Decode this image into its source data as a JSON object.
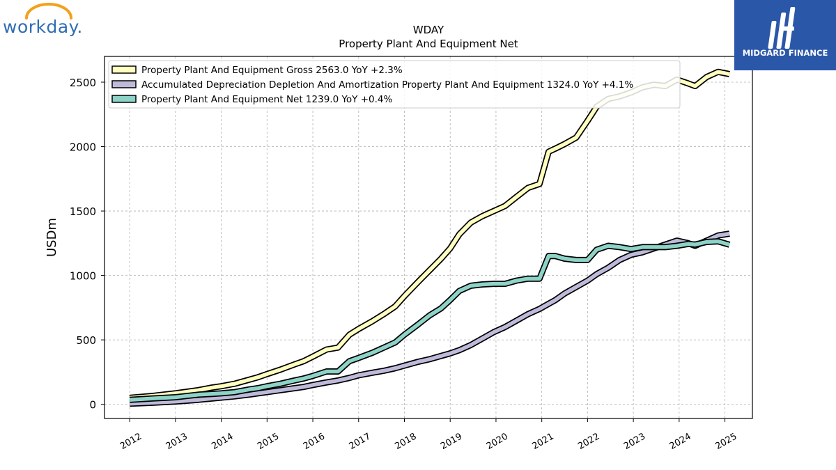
{
  "logos": {
    "company": "workday.",
    "publisher": "MIDGARD FINANCE"
  },
  "chart_data": {
    "type": "line",
    "title": "WDAY",
    "subtitle": "Property Plant And Equipment Net",
    "ylabel": "USDm",
    "xlabel": "",
    "xlim": [
      2011.45,
      2025.6
    ],
    "ylim": [
      -110,
      2700
    ],
    "yticks": [
      0,
      500,
      1000,
      1500,
      2000,
      2500
    ],
    "xticks": [
      "2012",
      "2013",
      "2014",
      "2015",
      "2016",
      "2017",
      "2018",
      "2019",
      "2020",
      "2021",
      "2022",
      "2023",
      "2024",
      "2025"
    ],
    "grid": true,
    "legend_position": "top-left",
    "series": [
      {
        "name": "Property Plant And Equipment Gross  2563.0 YoY +2.3%",
        "color": "#ffffc0",
        "x": [
          2012.0,
          2012.5,
          2013.0,
          2013.5,
          2013.8,
          2014.0,
          2014.3,
          2014.6,
          2014.8,
          2015.0,
          2015.3,
          2015.6,
          2015.8,
          2016.0,
          2016.3,
          2016.55,
          2016.8,
          2017.0,
          2017.3,
          2017.55,
          2017.8,
          2018.0,
          2018.3,
          2018.55,
          2018.8,
          2019.0,
          2019.2,
          2019.45,
          2019.7,
          2019.95,
          2020.2,
          2020.45,
          2020.7,
          2020.95,
          2021.15,
          2021.3,
          2021.5,
          2021.75,
          2022.0,
          2022.2,
          2022.45,
          2022.7,
          2022.95,
          2023.2,
          2023.45,
          2023.7,
          2023.95,
          2024.2,
          2024.35,
          2024.6,
          2024.85,
          2025.1
        ],
        "y": [
          50,
          65,
          85,
          110,
          130,
          140,
          160,
          190,
          210,
          235,
          270,
          310,
          335,
          370,
          425,
          440,
          540,
          585,
          645,
          700,
          760,
          840,
          950,
          1040,
          1130,
          1210,
          1320,
          1410,
          1460,
          1500,
          1540,
          1610,
          1680,
          1710,
          1960,
          1985,
          2020,
          2070,
          2200,
          2310,
          2370,
          2390,
          2420,
          2460,
          2480,
          2470,
          2520,
          2490,
          2470,
          2540,
          2580,
          2563
        ]
      },
      {
        "name": "Accumulated Depreciation Depletion And Amortization Property Plant And Equipment  1324.0 YoY +4.1%",
        "color": "#bebada",
        "x": [
          2012.0,
          2012.5,
          2013.0,
          2013.5,
          2013.8,
          2014.0,
          2014.3,
          2014.6,
          2014.8,
          2015.0,
          2015.3,
          2015.6,
          2015.8,
          2016.0,
          2016.3,
          2016.55,
          2016.8,
          2017.0,
          2017.3,
          2017.55,
          2017.8,
          2018.0,
          2018.3,
          2018.55,
          2018.8,
          2019.0,
          2019.2,
          2019.45,
          2019.7,
          2019.95,
          2020.2,
          2020.45,
          2020.7,
          2020.95,
          2021.15,
          2021.3,
          2021.5,
          2021.75,
          2022.0,
          2022.2,
          2022.45,
          2022.7,
          2022.95,
          2023.2,
          2023.45,
          2023.7,
          2023.95,
          2024.2,
          2024.35,
          2024.6,
          2024.85,
          2025.1
        ],
        "y": [
          5,
          12,
          22,
          35,
          45,
          52,
          62,
          75,
          85,
          95,
          110,
          125,
          135,
          150,
          170,
          185,
          205,
          225,
          245,
          260,
          280,
          300,
          330,
          350,
          375,
          395,
          420,
          460,
          510,
          560,
          600,
          650,
          700,
          740,
          780,
          810,
          860,
          910,
          960,
          1010,
          1060,
          1120,
          1160,
          1180,
          1210,
          1240,
          1270,
          1250,
          1230,
          1270,
          1310,
          1324
        ]
      },
      {
        "name": "Property Plant And Equipment Net  1239.0 YoY +0.4%",
        "color": "#8dd3c7",
        "x": [
          2012.0,
          2012.5,
          2013.0,
          2013.5,
          2013.8,
          2014.0,
          2014.3,
          2014.6,
          2014.8,
          2015.0,
          2015.3,
          2015.6,
          2015.8,
          2016.0,
          2016.3,
          2016.55,
          2016.8,
          2017.0,
          2017.3,
          2017.55,
          2017.8,
          2018.0,
          2018.3,
          2018.55,
          2018.8,
          2019.0,
          2019.2,
          2019.45,
          2019.7,
          2019.95,
          2020.2,
          2020.45,
          2020.7,
          2020.95,
          2021.15,
          2021.3,
          2021.5,
          2021.75,
          2022.0,
          2022.2,
          2022.45,
          2022.7,
          2022.95,
          2023.2,
          2023.45,
          2023.7,
          2023.95,
          2024.2,
          2024.35,
          2024.6,
          2024.85,
          2025.1
        ],
        "y": [
          35,
          45,
          55,
          75,
          80,
          85,
          95,
          115,
          125,
          140,
          160,
          185,
          200,
          220,
          255,
          255,
          335,
          360,
          400,
          440,
          480,
          540,
          620,
          690,
          745,
          810,
          880,
          920,
          930,
          935,
          935,
          960,
          975,
          975,
          1150,
          1150,
          1130,
          1120,
          1120,
          1200,
          1230,
          1220,
          1205,
          1220,
          1220,
          1220,
          1230,
          1245,
          1240,
          1260,
          1265,
          1239
        ]
      }
    ]
  }
}
